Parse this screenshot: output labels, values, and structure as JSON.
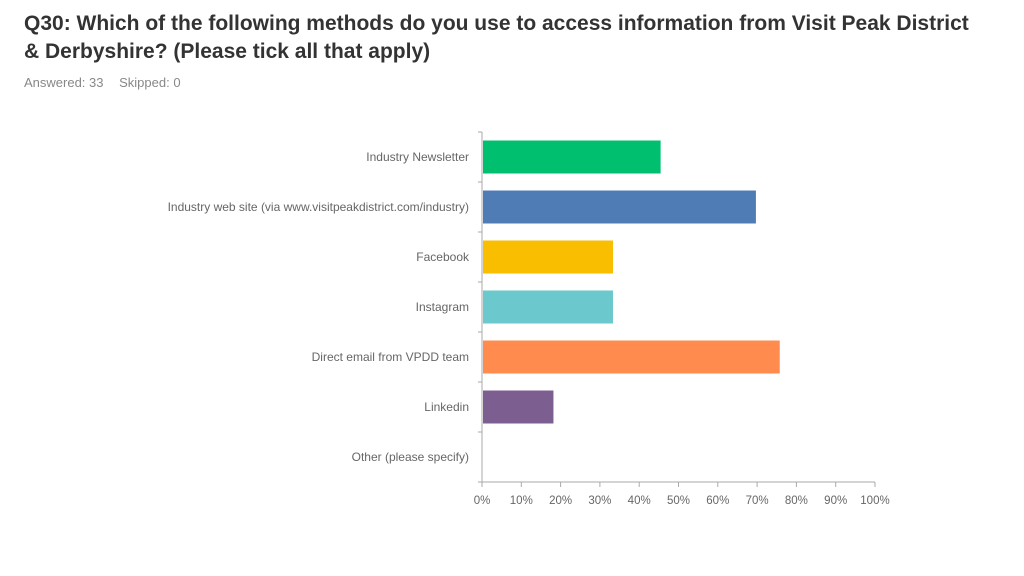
{
  "question": {
    "title": "Q30: Which of the following methods do you use to access information from Visit Peak District & Derbyshire? (Please tick all that apply)",
    "answered": "Answered: 33",
    "skipped": "Skipped: 0"
  },
  "chart_data": {
    "type": "bar",
    "orientation": "horizontal",
    "categories": [
      "Industry Newsletter",
      "Industry web site (via www.visitpeakdistrict.com/industry)",
      "Facebook",
      "Instagram",
      "Direct email from VPDD team",
      "Linkedin",
      "Other (please specify)"
    ],
    "values": [
      45.45,
      69.7,
      33.33,
      33.33,
      75.76,
      18.18,
      0
    ],
    "colors": [
      "#00BF6F",
      "#507CB6",
      "#F9BE00",
      "#6BC8CD",
      "#FF8B4F",
      "#7D5E90",
      "#D25F90"
    ],
    "xlim": [
      0,
      100
    ],
    "x_ticks": [
      "0%",
      "10%",
      "20%",
      "30%",
      "40%",
      "50%",
      "60%",
      "70%",
      "80%",
      "90%",
      "100%"
    ],
    "grid": false,
    "legend": "none"
  }
}
